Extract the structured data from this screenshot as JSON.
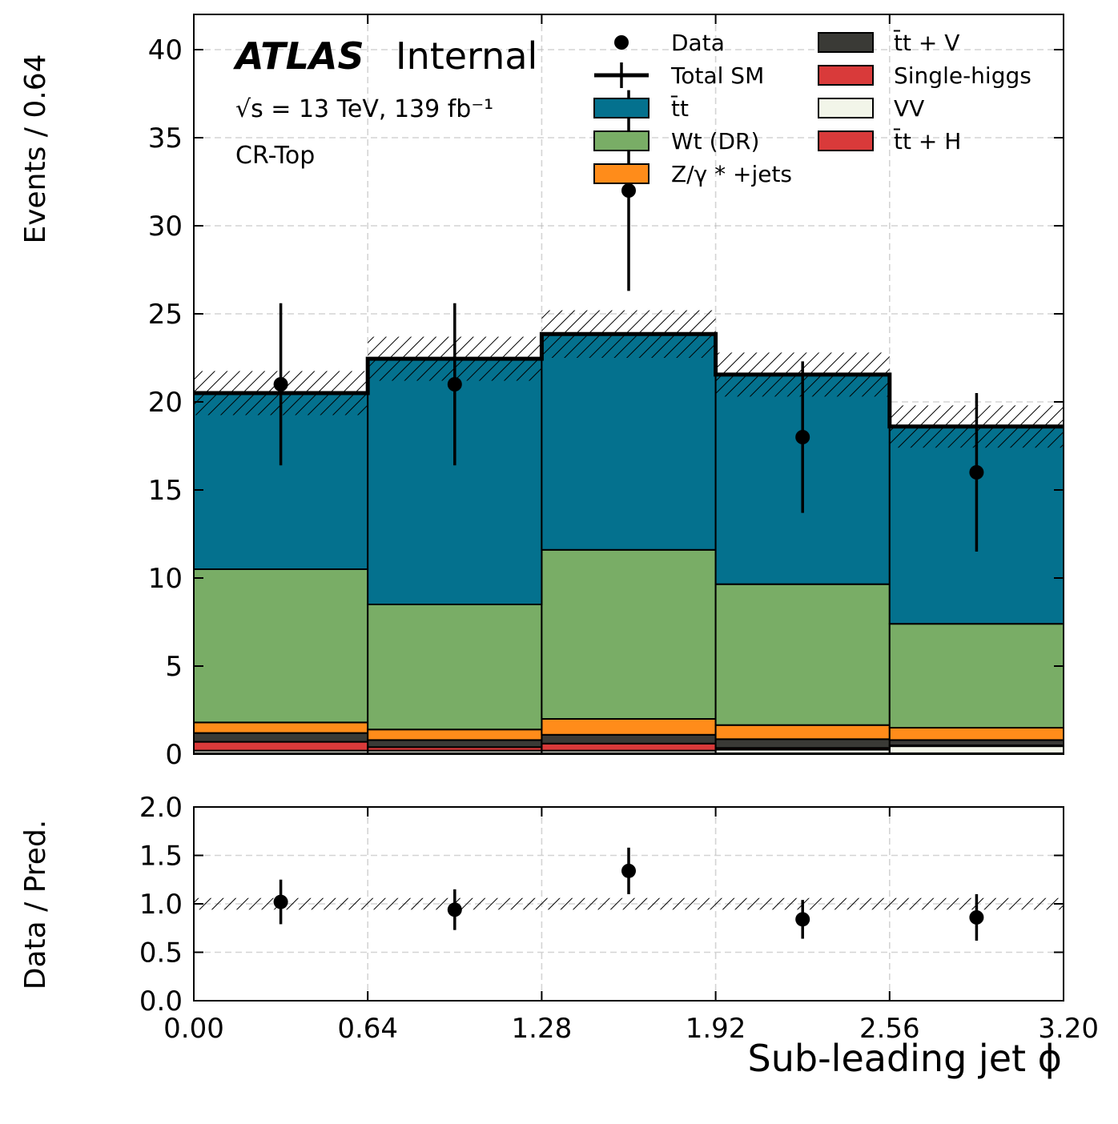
{
  "chart_data": {
    "type": "bar",
    "bin_edges": [
      0.0,
      0.64,
      1.28,
      1.92,
      2.56,
      3.2
    ],
    "main_panel": {
      "ylabel": "Events / 0.64",
      "ylim": [
        0,
        42
      ],
      "yticks": [
        0,
        5,
        10,
        15,
        20,
        25,
        30,
        35,
        40
      ],
      "ytick_labels": [
        "0",
        "5",
        "10",
        "15",
        "20",
        "25",
        "30",
        "35",
        "40"
      ],
      "grid": true,
      "stack": [
        {
          "name": "t̄t+H",
          "color": "#d93a3a",
          "values": [
            0.05,
            0.05,
            0.05,
            0.05,
            0.05
          ]
        },
        {
          "name": "VV",
          "color": "#f2f5e9",
          "values": [
            0.15,
            0.15,
            0.15,
            0.2,
            0.4
          ]
        },
        {
          "name": "Single-higgs",
          "color": "#d93a3a",
          "values": [
            0.5,
            0.2,
            0.4,
            0.1,
            0.05
          ]
        },
        {
          "name": "t̄t+V",
          "color": "#3a3a36",
          "values": [
            0.5,
            0.4,
            0.5,
            0.5,
            0.3
          ]
        },
        {
          "name": "Z/γ*+jets",
          "color": "#ff8c1a",
          "values": [
            0.6,
            0.6,
            0.9,
            0.8,
            0.7
          ]
        },
        {
          "name": "Wt (DR)",
          "color": "#79ad66",
          "values": [
            8.7,
            7.1,
            9.6,
            8.0,
            5.9
          ]
        },
        {
          "name": "t̄t",
          "color": "#04718e",
          "values": [
            10.0,
            13.95,
            12.25,
            11.9,
            11.2
          ]
        }
      ],
      "total_sm": [
        20.5,
        22.45,
        23.85,
        21.55,
        18.6
      ],
      "total_sm_uncertainty": [
        1.25,
        1.25,
        1.35,
        1.25,
        1.2
      ],
      "data": {
        "x": [
          0.32,
          0.96,
          1.6,
          2.24,
          2.88
        ],
        "y": [
          21,
          21,
          32,
          18,
          16
        ],
        "err": [
          4.6,
          4.6,
          5.7,
          4.3,
          4.5
        ]
      }
    },
    "ratio_panel": {
      "ylabel": "Data / Pred.",
      "ylim": [
        0,
        2
      ],
      "yticks": [
        0,
        0.5,
        1,
        1.5,
        2
      ],
      "ytick_labels": [
        "0.0",
        "0.5",
        "1.0",
        "1.5",
        "2.0"
      ],
      "x": [
        0.32,
        0.96,
        1.6,
        2.24,
        2.88
      ],
      "y": [
        1.02,
        0.94,
        1.34,
        0.84,
        0.86
      ],
      "err": [
        0.23,
        0.21,
        0.24,
        0.2,
        0.24
      ],
      "band_half_width": 0.06
    },
    "xaxis": {
      "label": "Sub-leading jet ϕ",
      "xlim": [
        0,
        3.2
      ],
      "ticks": [
        0,
        0.64,
        1.28,
        1.92,
        2.56,
        3.2
      ],
      "tick_labels": [
        "0.00",
        "0.64",
        "1.28",
        "1.92",
        "2.56",
        "3.20"
      ]
    },
    "legend": {
      "placement": "top-right",
      "entries": [
        {
          "label": "Data",
          "kind": "marker",
          "color": "#000000"
        },
        {
          "label": "Total SM",
          "kind": "line",
          "color": "#000000"
        },
        {
          "label": "t̄t",
          "kind": "box",
          "color": "#04718e"
        },
        {
          "label": "Wt (DR)",
          "kind": "box",
          "color": "#79ad66"
        },
        {
          "label": "Z/γ * +jets",
          "kind": "box",
          "color": "#ff8c1a"
        },
        {
          "label": "t̄t + V",
          "kind": "box",
          "color": "#3a3a36"
        },
        {
          "label": "Single-higgs",
          "kind": "box",
          "color": "#d93a3a"
        },
        {
          "label": "VV",
          "kind": "box",
          "color": "#f2f5e9"
        },
        {
          "label": "t̄t + H",
          "kind": "box",
          "color": "#d93a3a"
        }
      ]
    },
    "annotations": {
      "experiment": "ATLAS",
      "status": "Internal",
      "energy_lumi": "√s = 13 TeV, 139 fb⁻¹",
      "region": "CR-Top"
    }
  }
}
